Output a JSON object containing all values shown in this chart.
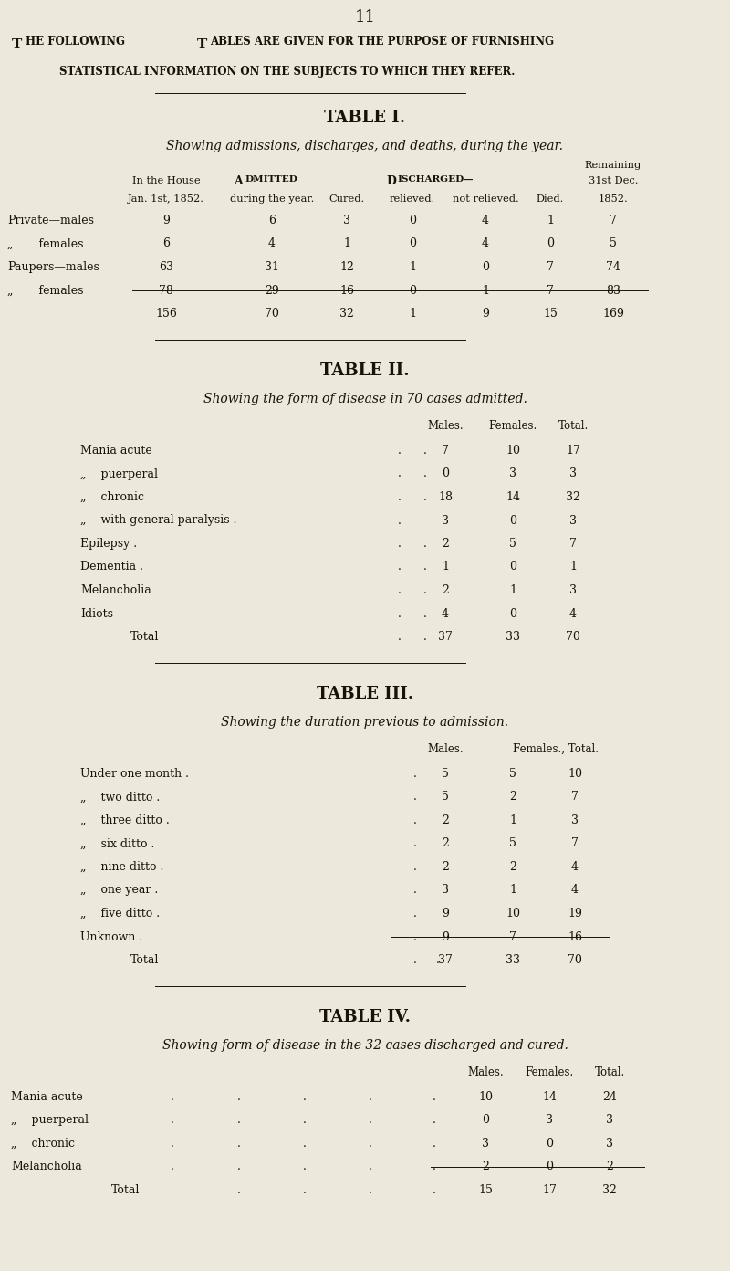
{
  "bg_color": "#ede8dc",
  "text_color": "#1a1208",
  "page_number": "11",
  "intro_line1": "The following Tables are given for the purpose of furnishing",
  "intro_line2": "statistical information on the subjects to which they refer.",
  "t1_title": "TABLE I.",
  "t1_subtitle": "Showing admissions, discharges, and deaths, during the year.",
  "t1_rows": [
    [
      "Private—males",
      "9",
      "6",
      "3",
      "0",
      "4",
      "1",
      "7"
    ],
    [
      "„       females",
      "6",
      "4",
      "1",
      "0",
      "4",
      "0",
      "5"
    ],
    [
      "Paupers—males",
      "63",
      "31",
      "12",
      "1",
      "0",
      "7",
      "74"
    ],
    [
      "„       females",
      "78",
      "29",
      "16",
      "0",
      "1",
      "7",
      "83"
    ]
  ],
  "t1_total": [
    "156",
    "70",
    "32",
    "1",
    "9",
    "15",
    "169"
  ],
  "t2_title": "TABLE II.",
  "t2_subtitle": "Showing the form of disease in 70 cases admitted.",
  "t2_rows": [
    [
      "Mania acute",
      "7",
      "10",
      "17"
    ],
    [
      "„    puerperal",
      "0",
      "3",
      "3"
    ],
    [
      "„    chronic",
      "18",
      "14",
      "32"
    ],
    [
      "„    with general paralysis .",
      "3",
      "0",
      "3"
    ],
    [
      "Epilepsy .",
      "2",
      "5",
      "7"
    ],
    [
      "Dementia .",
      "1",
      "0",
      "1"
    ],
    [
      "Melancholia",
      "2",
      "1",
      "3"
    ],
    [
      "Idiots",
      "4",
      "0",
      "4"
    ]
  ],
  "t2_total": [
    "37",
    "33",
    "70"
  ],
  "t3_title": "TABLE III.",
  "t3_subtitle": "Showing the duration previous to admission.",
  "t3_rows": [
    [
      "Under one month .",
      "5",
      "5",
      "10"
    ],
    [
      "„    two ditto .",
      "5",
      "2",
      "7"
    ],
    [
      "„    three ditto .",
      "2",
      "1",
      "3"
    ],
    [
      "„    six ditto .",
      "2",
      "5",
      "7"
    ],
    [
      "„    nine ditto .",
      "2",
      "2",
      "4"
    ],
    [
      "„    one year .",
      "3",
      "1",
      "4"
    ],
    [
      "„    five ditto .",
      "9",
      "10",
      "19"
    ],
    [
      "Unknown .",
      "9",
      "7",
      "16"
    ]
  ],
  "t3_total": [
    "37",
    "33",
    "70"
  ],
  "t4_title": "TABLE IV.",
  "t4_subtitle": "Showing form of disease in the 32 cases discharged and cured.",
  "t4_rows": [
    [
      "Mania acute",
      "10",
      "14",
      "24"
    ],
    [
      "„    puerperal",
      "0",
      "3",
      "3"
    ],
    [
      "„    chronic",
      "3",
      "0",
      "3"
    ],
    [
      "Melancholia",
      "2",
      "0",
      "2"
    ]
  ],
  "t4_total": [
    "15",
    "17",
    "32"
  ]
}
